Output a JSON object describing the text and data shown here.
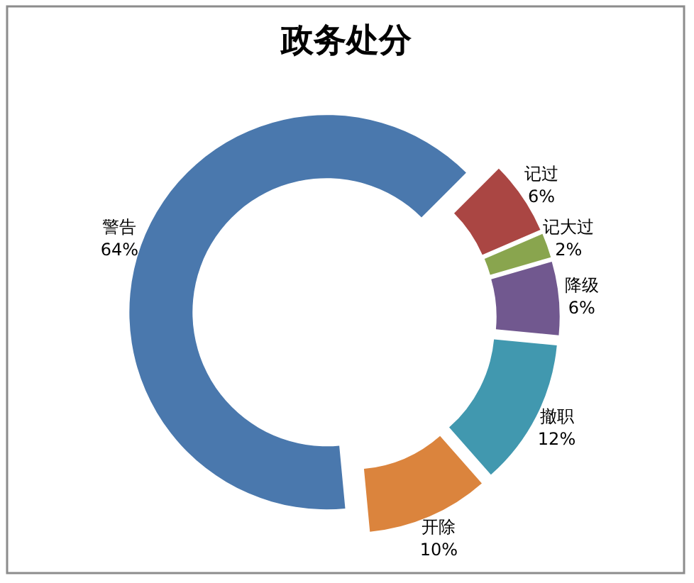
{
  "chart_data": {
    "type": "donut",
    "title": "政务处分",
    "categories": [
      "警告",
      "记过",
      "记大过",
      "降级",
      "撤职",
      "开除"
    ],
    "values": [
      64,
      6,
      2,
      6,
      12,
      10
    ],
    "colors": [
      "#4a78ad",
      "#aa4643",
      "#89a54e",
      "#71588f",
      "#4198af",
      "#db843d"
    ],
    "value_labels": [
      "64%",
      "6%",
      "2%",
      "6%",
      "12%",
      "10%"
    ]
  }
}
